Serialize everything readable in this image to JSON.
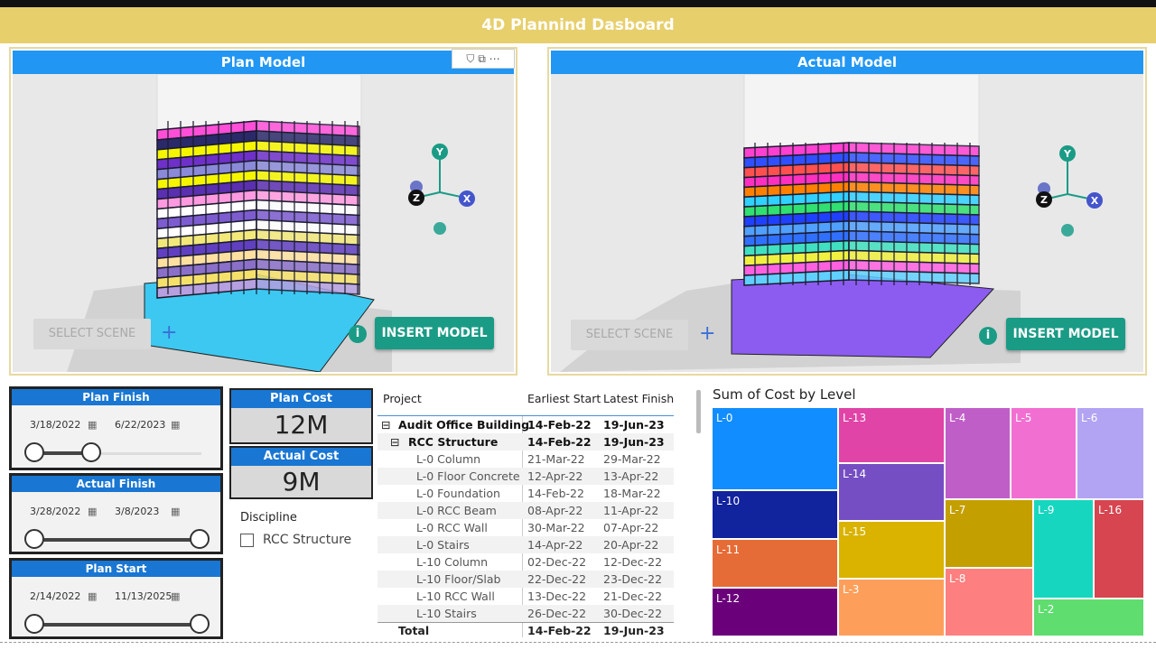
{
  "header": {
    "title": "4D Plannind Dasboard"
  },
  "plan_model": {
    "title": "Plan Model",
    "select_scene": "SELECT SCENE",
    "insert_model": "INSERT MODEL",
    "gizmo": [
      "Y",
      "Z",
      "X"
    ]
  },
  "actual_model": {
    "title": "Actual Model",
    "select_scene": "SELECT SCENE",
    "insert_model": "INSERT MODEL",
    "gizmo": [
      "Y",
      "Z",
      "X"
    ]
  },
  "slicers": [
    {
      "title": "Plan Finish",
      "from": "3/18/2022",
      "to": "6/22/2023"
    },
    {
      "title": "Actual Finish",
      "from": "3/28/2022",
      "to": "3/8/2023"
    },
    {
      "title": "Plan Start",
      "from": "2/14/2022",
      "to": "11/13/2025"
    }
  ],
  "cards": [
    {
      "title": "Plan Cost",
      "value": "12M"
    },
    {
      "title": "Actual Cost",
      "value": "9M"
    }
  ],
  "discipline": {
    "title": "Discipline",
    "option": "RCC Structure"
  },
  "table": {
    "headers": [
      "Project",
      "Earliest Start",
      "Latest Finish"
    ],
    "rows": [
      [
        "Audit Office Building",
        "14-Feb-22",
        "19-Jun-23"
      ],
      [
        "RCC Structure",
        "14-Feb-22",
        "19-Jun-23"
      ],
      [
        "L-0 Column",
        "21-Mar-22",
        "29-Mar-22"
      ],
      [
        "L-0 Floor Concrete",
        "12-Apr-22",
        "13-Apr-22"
      ],
      [
        "L-0 Foundation",
        "14-Feb-22",
        "18-Mar-22"
      ],
      [
        "L-0 RCC Beam",
        "08-Apr-22",
        "11-Apr-22"
      ],
      [
        "L-0 RCC Wall",
        "30-Mar-22",
        "07-Apr-22"
      ],
      [
        "L-0 Stairs",
        "14-Apr-22",
        "20-Apr-22"
      ],
      [
        "L-10 Column",
        "02-Dec-22",
        "12-Dec-22"
      ],
      [
        "L-10 Floor/Slab",
        "22-Dec-22",
        "23-Dec-22"
      ],
      [
        "L-10 RCC Wall",
        "13-Dec-22",
        "21-Dec-22"
      ],
      [
        "L-10 Stairs",
        "26-Dec-22",
        "30-Dec-22"
      ]
    ],
    "total": [
      "Total",
      "14-Feb-22",
      "19-Jun-23"
    ]
  },
  "treemap": {
    "title": "Sum of Cost by Level",
    "levels": [
      {
        "name": "L-0",
        "color": "#118dff"
      },
      {
        "name": "L-10",
        "color": "#12239e"
      },
      {
        "name": "L-11",
        "color": "#e66c37"
      },
      {
        "name": "L-12",
        "color": "#6b007b"
      },
      {
        "name": "L-13",
        "color": "#e044a7"
      },
      {
        "name": "L-14",
        "color": "#744ec2"
      },
      {
        "name": "L-15",
        "color": "#d9b300"
      },
      {
        "name": "L-3",
        "color": "#fd9f5b"
      },
      {
        "name": "L-4",
        "color": "#c05ec8"
      },
      {
        "name": "L-5",
        "color": "#f26fd2"
      },
      {
        "name": "L-6",
        "color": "#b3a3f3"
      },
      {
        "name": "L-7",
        "color": "#c49f00"
      },
      {
        "name": "L-8",
        "color": "#fd7f7f"
      },
      {
        "name": "L-9",
        "color": "#17d6bf"
      },
      {
        "name": "L-16",
        "color": "#d64550"
      },
      {
        "name": "L-2",
        "color": "#5fdd6f"
      }
    ]
  }
}
